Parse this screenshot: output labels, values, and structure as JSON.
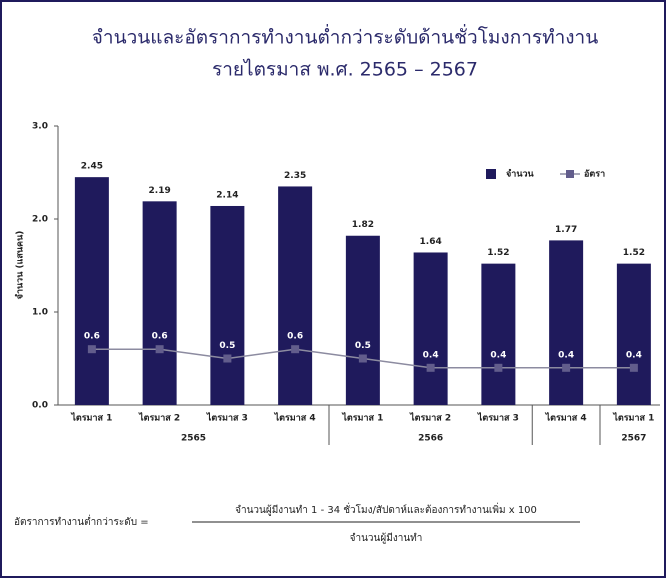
{
  "chart_data": {
    "type": "bar_line",
    "title": [
      "จำนวนและอัตราการทำงานต่ำกว่าระดับด้านชั่วโมงการทำงาน",
      "รายไตรมาส พ.ศ. 2565 – 2567"
    ],
    "y_label": "จำนวน (แสนคน)",
    "categories": [
      "ไตรมาส 1",
      "ไตรมาส 2",
      "ไตรมาส 3",
      "ไตรมาส 4",
      "ไตรมาส 1",
      "ไตรมาส 2",
      "ไตรมาส 3",
      "ไตรมาส 4",
      "ไตรมาส 1"
    ],
    "groups": [
      {
        "name": "2565",
        "size": 4
      },
      {
        "name": "2566",
        "size": 3
      },
      {
        "name": null,
        "size": 1
      },
      {
        "name": "2567",
        "size": 1
      }
    ],
    "series": [
      {
        "name": "จำนวน",
        "kind": "bar",
        "color": "#1f1a5c",
        "values": [
          2.45,
          2.19,
          2.14,
          2.35,
          1.82,
          1.64,
          1.52,
          1.77,
          1.52
        ]
      },
      {
        "name": "อัตรา",
        "kind": "line",
        "color": "#8c8ba0",
        "marker_color": "#625d8c",
        "values": [
          0.6,
          0.6,
          0.5,
          0.6,
          0.5,
          0.4,
          0.4,
          0.4,
          0.4
        ]
      }
    ],
    "ylim": [
      0,
      3
    ],
    "yticks": [
      {
        "value": 0,
        "label": "0.0"
      },
      {
        "value": 1,
        "label": "1.0"
      },
      {
        "value": 2,
        "label": "2.0"
      },
      {
        "value": 3,
        "label": "3.0"
      }
    ],
    "legend": "top-right"
  },
  "formula": {
    "lhs": "อัตราการทำงานต่ำกว่าระดับ =",
    "numerator": "จำนวนผู้มีงานทำ 1 - 34 ชั่วโมง/สัปดาห์และต้องการทำงานเพิ่ม x 100",
    "denominator": "จำนวนผู้มีงานทำ"
  }
}
